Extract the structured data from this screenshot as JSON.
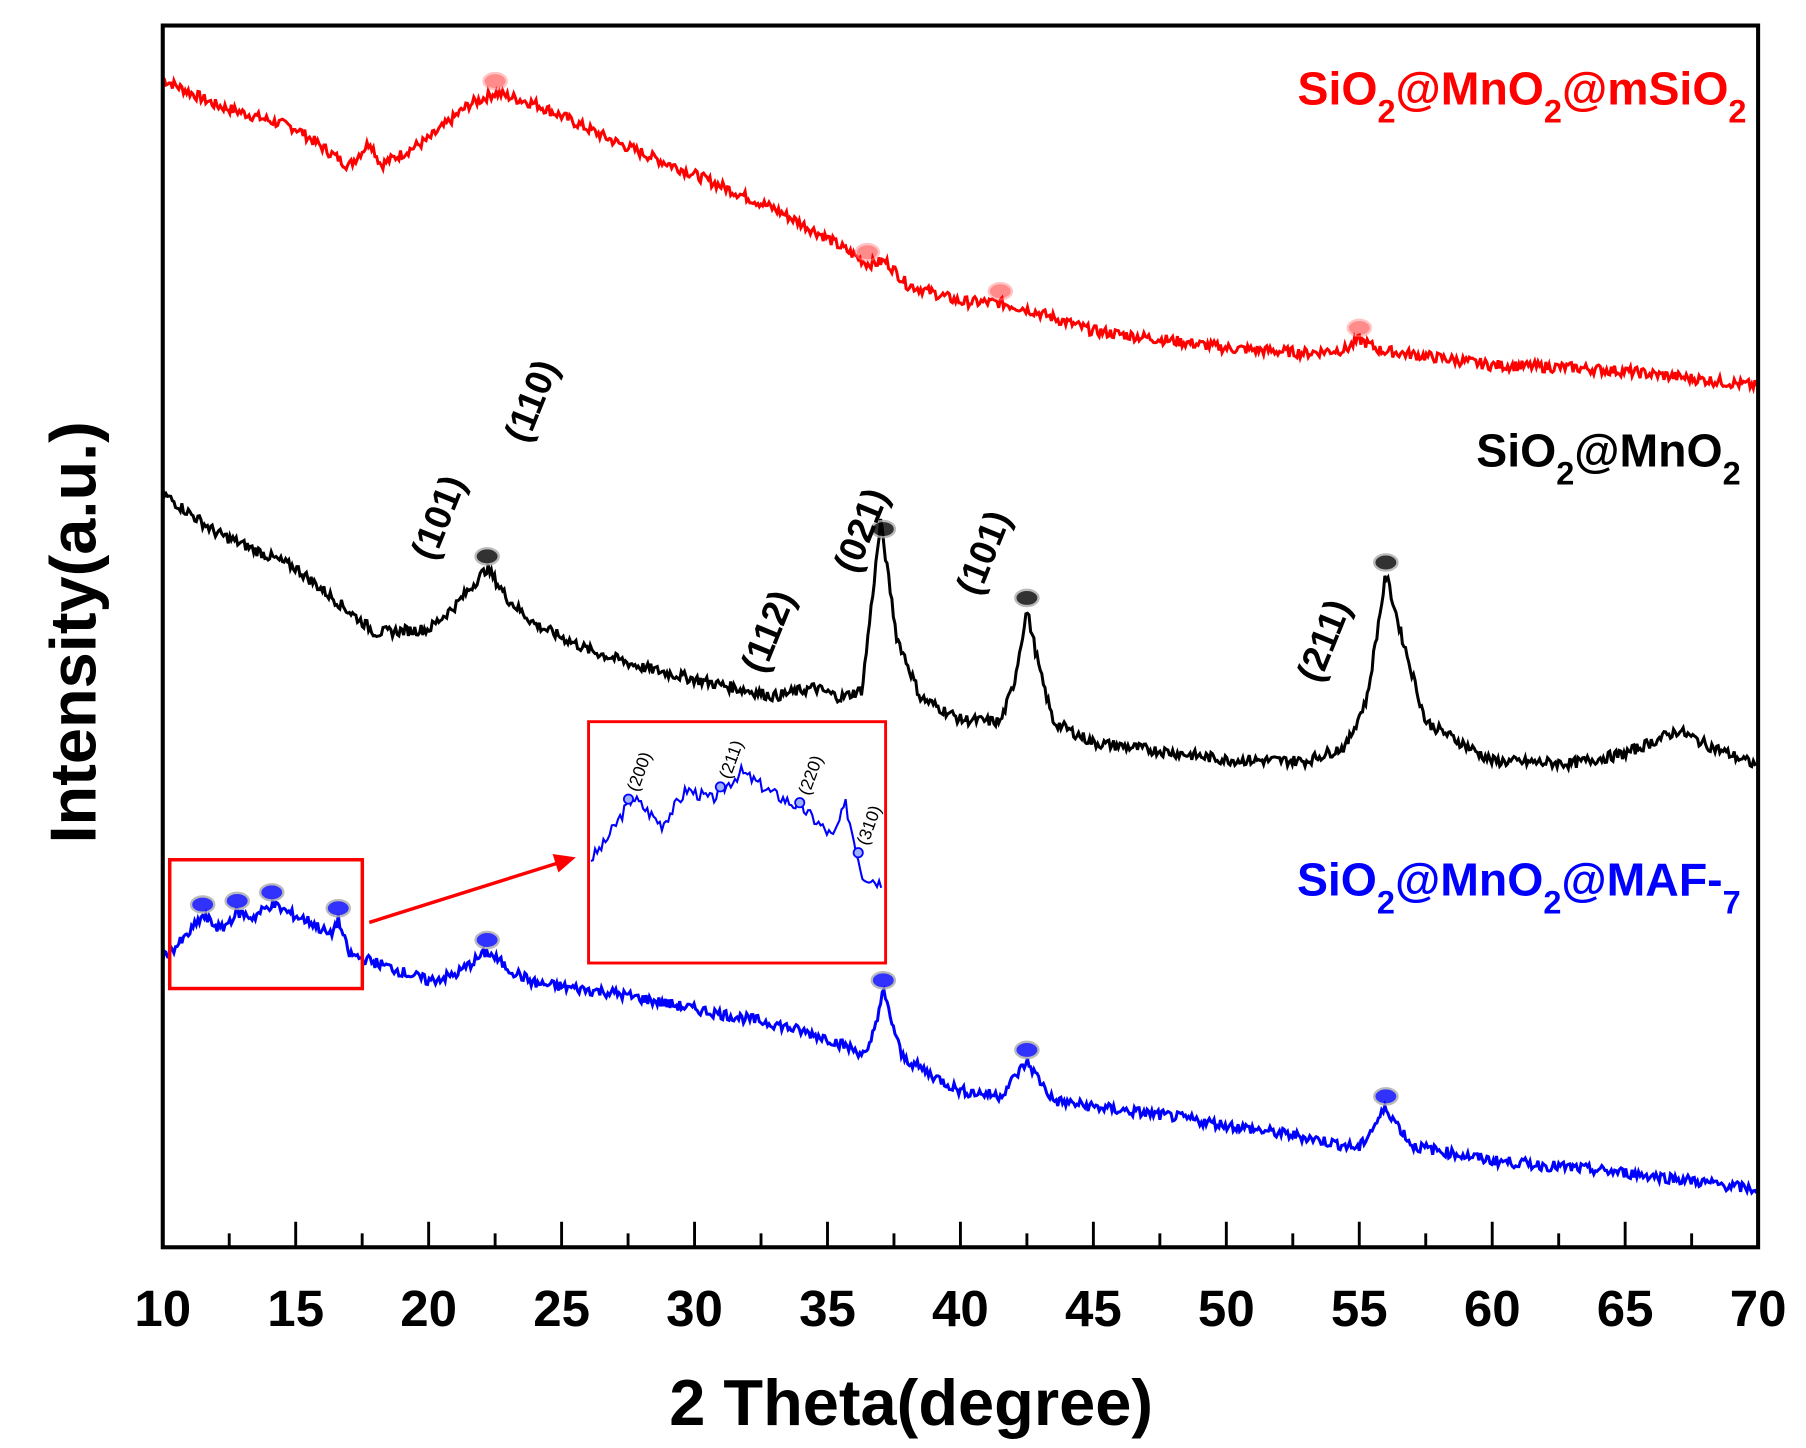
{
  "chart_data": {
    "type": "line",
    "xlabel": "2 Theta(degree)",
    "ylabel": "Intensity(a.u.)",
    "xlim": [
      10,
      70
    ],
    "xticks": [
      10,
      15,
      20,
      25,
      30,
      35,
      40,
      45,
      50,
      55,
      60,
      65,
      70
    ],
    "ylim": [
      0,
      100
    ],
    "grid": false,
    "series": [
      {
        "name": "SiO2@MnO2@mSiO2",
        "color": "#ff0000",
        "x": [
          10,
          12,
          15,
          17,
          17.8,
          18.2,
          19,
          20,
          21.5,
          22.5,
          24,
          25,
          27,
          30,
          33,
          35,
          36,
          36.5,
          37.2,
          38,
          40,
          41.5,
          42.5,
          45,
          48,
          50,
          53,
          54.5,
          55,
          55.8,
          58,
          60,
          63,
          65,
          68,
          70
        ],
        "y": [
          95.6,
          93.5,
          91.6,
          88.5,
          90.5,
          88.6,
          89.5,
          90.7,
          93.5,
          94.5,
          93.6,
          92.6,
          90.5,
          87.8,
          85,
          82.6,
          81.2,
          80.5,
          80.7,
          78.8,
          77.4,
          77.3,
          76.8,
          75,
          74.2,
          73.6,
          73.2,
          73.5,
          74.3,
          73.4,
          72.8,
          72.2,
          72,
          71.7,
          71,
          70.5
        ],
        "markers": [
          22.5,
          36.5,
          41.5,
          55
        ]
      },
      {
        "name": "SiO2@MnO2",
        "color": "#000000",
        "x": [
          10,
          12,
          15,
          18,
          20,
          21,
          22.2,
          23,
          24,
          26,
          28,
          30,
          33,
          34.5,
          35.5,
          36.3,
          37,
          37.6,
          38.5,
          40,
          41.5,
          42,
          42.5,
          43,
          43.5,
          45,
          48,
          50,
          53,
          54.5,
          55.3,
          56,
          56.6,
          57.5,
          60,
          63,
          65,
          67,
          68,
          70
        ],
        "y": [
          61.7,
          58.5,
          55.6,
          50.3,
          50.6,
          52.5,
          55.6,
          53,
          51,
          48.9,
          47.5,
          46.5,
          45.1,
          45.8,
          45,
          45.6,
          59.4,
          50,
          45,
          43.2,
          43,
          46,
          52.2,
          47,
          43,
          41.3,
          40.5,
          39.9,
          39.8,
          41,
          45,
          55.1,
          50,
          43,
          39.8,
          39.6,
          40.4,
          42.3,
          41.2,
          39.4
        ],
        "markers": [
          22.2,
          37.1,
          42.5,
          56
        ],
        "peak_labels": [
          {
            "x": 20.8,
            "label": "(101)"
          },
          {
            "x": 24.3,
            "label": "(110)"
          },
          {
            "x": 33.2,
            "label": "(112)"
          },
          {
            "x": 36.7,
            "label": "(021)"
          },
          {
            "x": 41.3,
            "label": "(101)"
          },
          {
            "x": 54.1,
            "label": "(211)"
          }
        ]
      },
      {
        "name": "SiO2@MnO2@MAF-7",
        "color": "#0000ff",
        "x": [
          10,
          10.8,
          11.5,
          12.2,
          12.8,
          13.4,
          14.1,
          14.8,
          15.6,
          16.3,
          16.6,
          17,
          18,
          20,
          21,
          22.2,
          23,
          24,
          27,
          30,
          33,
          35,
          36.5,
          37.1,
          37.8,
          39,
          40,
          41.5,
          42.5,
          43.5,
          45,
          48,
          50,
          53,
          55,
          56,
          57,
          60,
          63,
          65,
          67,
          70
        ],
        "y": [
          23.7,
          25.2,
          27.1,
          26,
          27.4,
          27,
          28.1,
          27.3,
          26.6,
          25.5,
          26.8,
          24,
          23.3,
          21.8,
          22.3,
          24.2,
          22.8,
          21.6,
          20.8,
          19.5,
          18.3,
          17.1,
          15.7,
          20.9,
          15.6,
          14,
          12.8,
          12.4,
          15.2,
          12,
          11.5,
          10.7,
          10,
          9,
          8.1,
          11.4,
          8.3,
          7.1,
          6.5,
          6.1,
          5.6,
          4.7
        ],
        "markers": [
          11.5,
          12.8,
          14.1,
          16.6,
          22.2,
          37.1,
          42.5,
          56
        ],
        "inset": {
          "xlim": [
            10.5,
            17.5
          ],
          "peak_labels": [
            {
              "x": 11.4,
              "label": "(200)"
            },
            {
              "x": 13.6,
              "label": "(211)"
            },
            {
              "x": 15.5,
              "label": "(220)"
            },
            {
              "x": 16.9,
              "label": "(310)"
            }
          ]
        }
      }
    ]
  }
}
